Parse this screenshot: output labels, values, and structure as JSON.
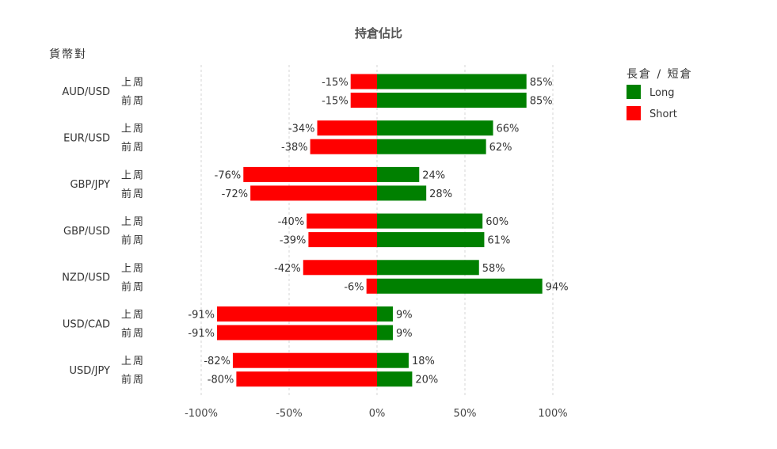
{
  "chart_data": {
    "type": "bar",
    "orientation": "horizontal",
    "stacked": true,
    "title": "持倉佔比",
    "ylabel": "貨幣對",
    "xlim": [
      -100,
      100
    ],
    "xticks": [
      -100,
      -50,
      0,
      50,
      100
    ],
    "xtick_labels": [
      "-100%",
      "-50%",
      "0%",
      "50%",
      "100%"
    ],
    "grid": "vertical-dashed",
    "legend": {
      "title": "長倉 / 短倉",
      "placement": "top-right",
      "entries": [
        {
          "label": "Long",
          "color": "#008000"
        },
        {
          "label": "Short",
          "color": "#ff0000"
        }
      ]
    },
    "groups": [
      {
        "pair": "AUD/USD",
        "rows": [
          {
            "period": "上周",
            "long": 85,
            "short": -15
          },
          {
            "period": "前周",
            "long": 85,
            "short": -15
          }
        ]
      },
      {
        "pair": "EUR/USD",
        "rows": [
          {
            "period": "上周",
            "long": 66,
            "short": -34
          },
          {
            "period": "前周",
            "long": 62,
            "short": -38
          }
        ]
      },
      {
        "pair": "GBP/JPY",
        "rows": [
          {
            "period": "上周",
            "long": 24,
            "short": -76
          },
          {
            "period": "前周",
            "long": 28,
            "short": -72
          }
        ]
      },
      {
        "pair": "GBP/USD",
        "rows": [
          {
            "period": "上周",
            "long": 60,
            "short": -40
          },
          {
            "period": "前周",
            "long": 61,
            "short": -39
          }
        ]
      },
      {
        "pair": "NZD/USD",
        "rows": [
          {
            "period": "上周",
            "long": 58,
            "short": -42
          },
          {
            "period": "前周",
            "long": 94,
            "short": -6
          }
        ]
      },
      {
        "pair": "USD/CAD",
        "rows": [
          {
            "period": "上周",
            "long": 9,
            "short": -91
          },
          {
            "period": "前周",
            "long": 9,
            "short": -91
          }
        ]
      },
      {
        "pair": "USD/JPY",
        "rows": [
          {
            "period": "上周",
            "long": 18,
            "short": -82
          },
          {
            "period": "前周",
            "long": 20,
            "short": -80
          }
        ]
      }
    ]
  }
}
